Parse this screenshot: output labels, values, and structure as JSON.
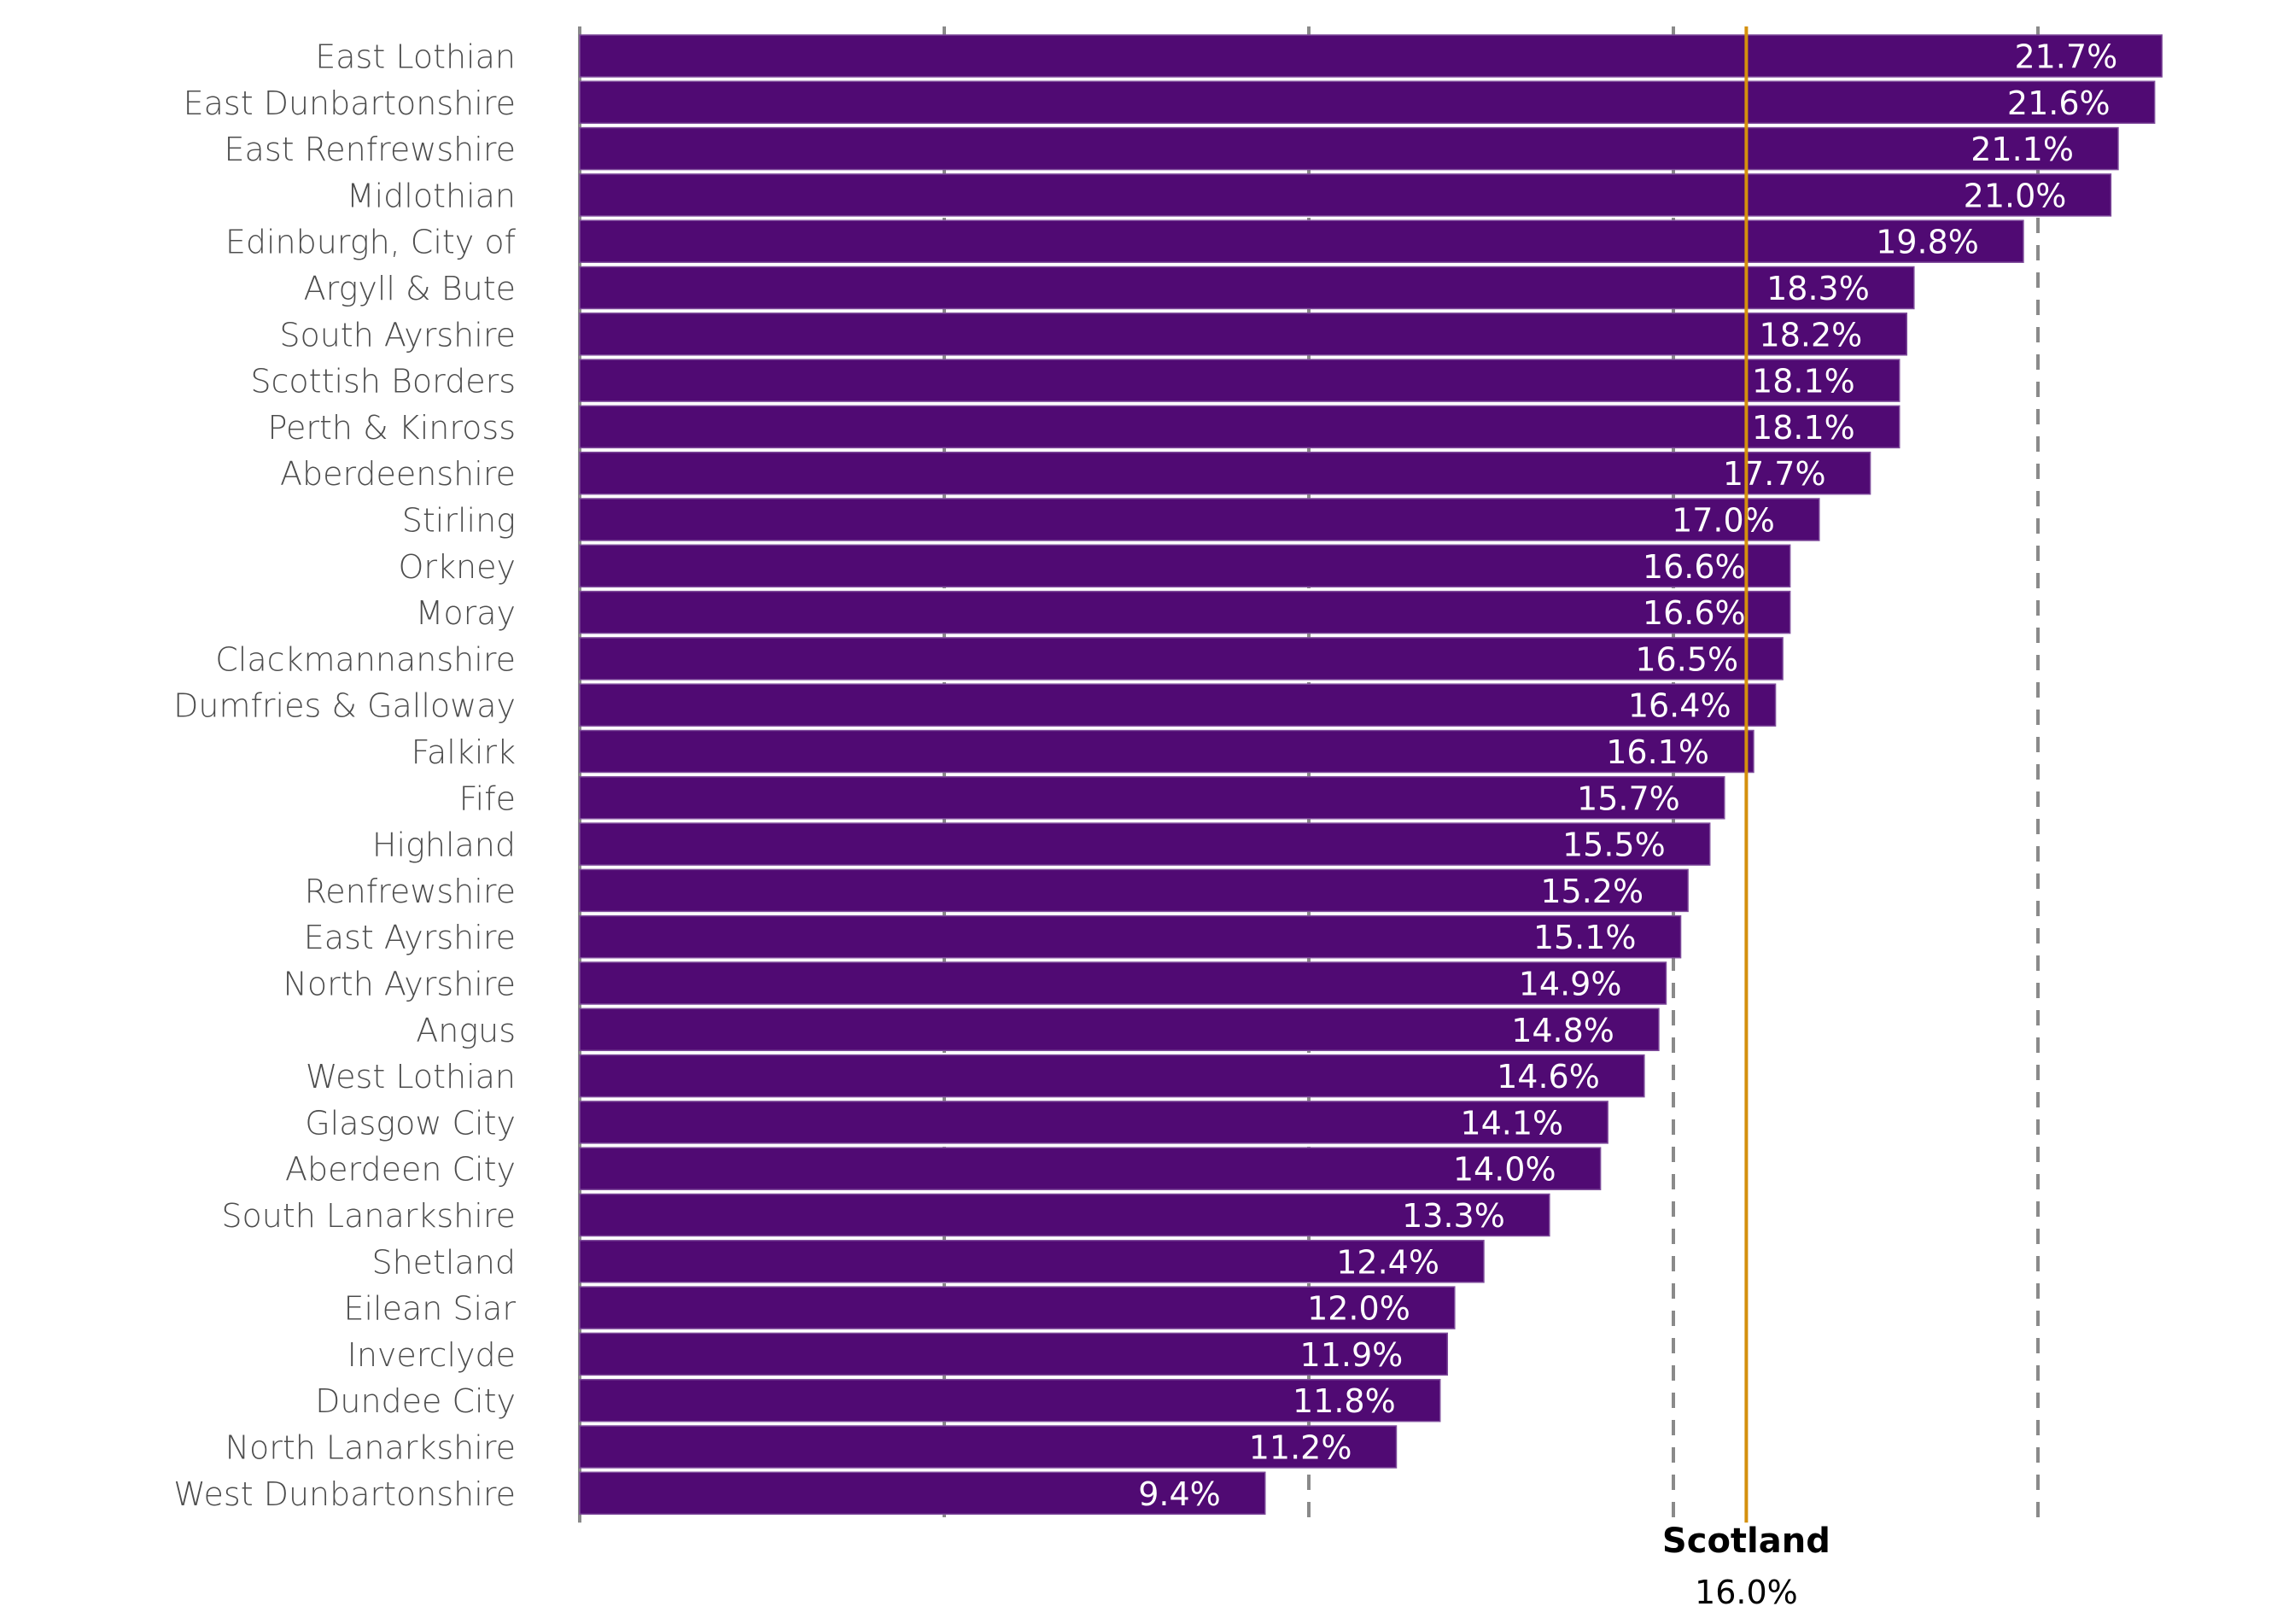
{
  "chart_data": {
    "type": "bar",
    "orientation": "horizontal",
    "title": "",
    "xlabel": "",
    "ylabel": "",
    "xlim": [
      0,
      22
    ],
    "x_gridlines": [
      0,
      5,
      10,
      15,
      20
    ],
    "tick_labels_shown": false,
    "grid": true,
    "value_format": "percent_1dp",
    "categories": [
      "East Lothian",
      "East Dunbartonshire",
      "East Renfrewshire",
      "Midlothian",
      "Edinburgh, City of",
      "Argyll & Bute",
      "South Ayrshire",
      "Scottish Borders",
      "Perth & Kinross",
      "Aberdeenshire",
      "Stirling",
      "Orkney",
      "Moray",
      "Clackmannanshire",
      "Dumfries & Galloway",
      "Falkirk",
      "Fife",
      "Highland",
      "Renfrewshire",
      "East Ayrshire",
      "North Ayrshire",
      "Angus",
      "West Lothian",
      "Glasgow City",
      "Aberdeen City",
      "South Lanarkshire",
      "Shetland",
      "Eilean Siar",
      "Inverclyde",
      "Dundee City",
      "North Lanarkshire",
      "West Dunbartonshire"
    ],
    "values": [
      21.7,
      21.6,
      21.1,
      21.0,
      19.8,
      18.3,
      18.2,
      18.1,
      18.1,
      17.7,
      17.0,
      16.6,
      16.6,
      16.5,
      16.4,
      16.1,
      15.7,
      15.5,
      15.2,
      15.1,
      14.9,
      14.8,
      14.6,
      14.1,
      14.0,
      13.3,
      12.4,
      12.0,
      11.9,
      11.8,
      11.2,
      9.4
    ],
    "value_labels": [
      "21.7%",
      "21.6%",
      "21.1%",
      "21.0%",
      "19.8%",
      "18.3%",
      "18.2%",
      "18.1%",
      "18.1%",
      "17.7%",
      "17.0%",
      "16.6%",
      "16.6%",
      "16.5%",
      "16.4%",
      "16.1%",
      "15.7%",
      "15.5%",
      "15.2%",
      "15.1%",
      "14.9%",
      "14.8%",
      "14.6%",
      "14.1%",
      "14.0%",
      "13.3%",
      "12.4%",
      "12.0%",
      "11.9%",
      "11.8%",
      "11.2%",
      "9.4%"
    ],
    "reference_line": {
      "name": "Scotland",
      "value": 16.0,
      "label": "16.0%"
    },
    "colors": {
      "bar": "#500A73",
      "reference": "#D4900E",
      "grid": "#8a8a8a",
      "axis": "#8a8a8a"
    },
    "legend": "none"
  }
}
